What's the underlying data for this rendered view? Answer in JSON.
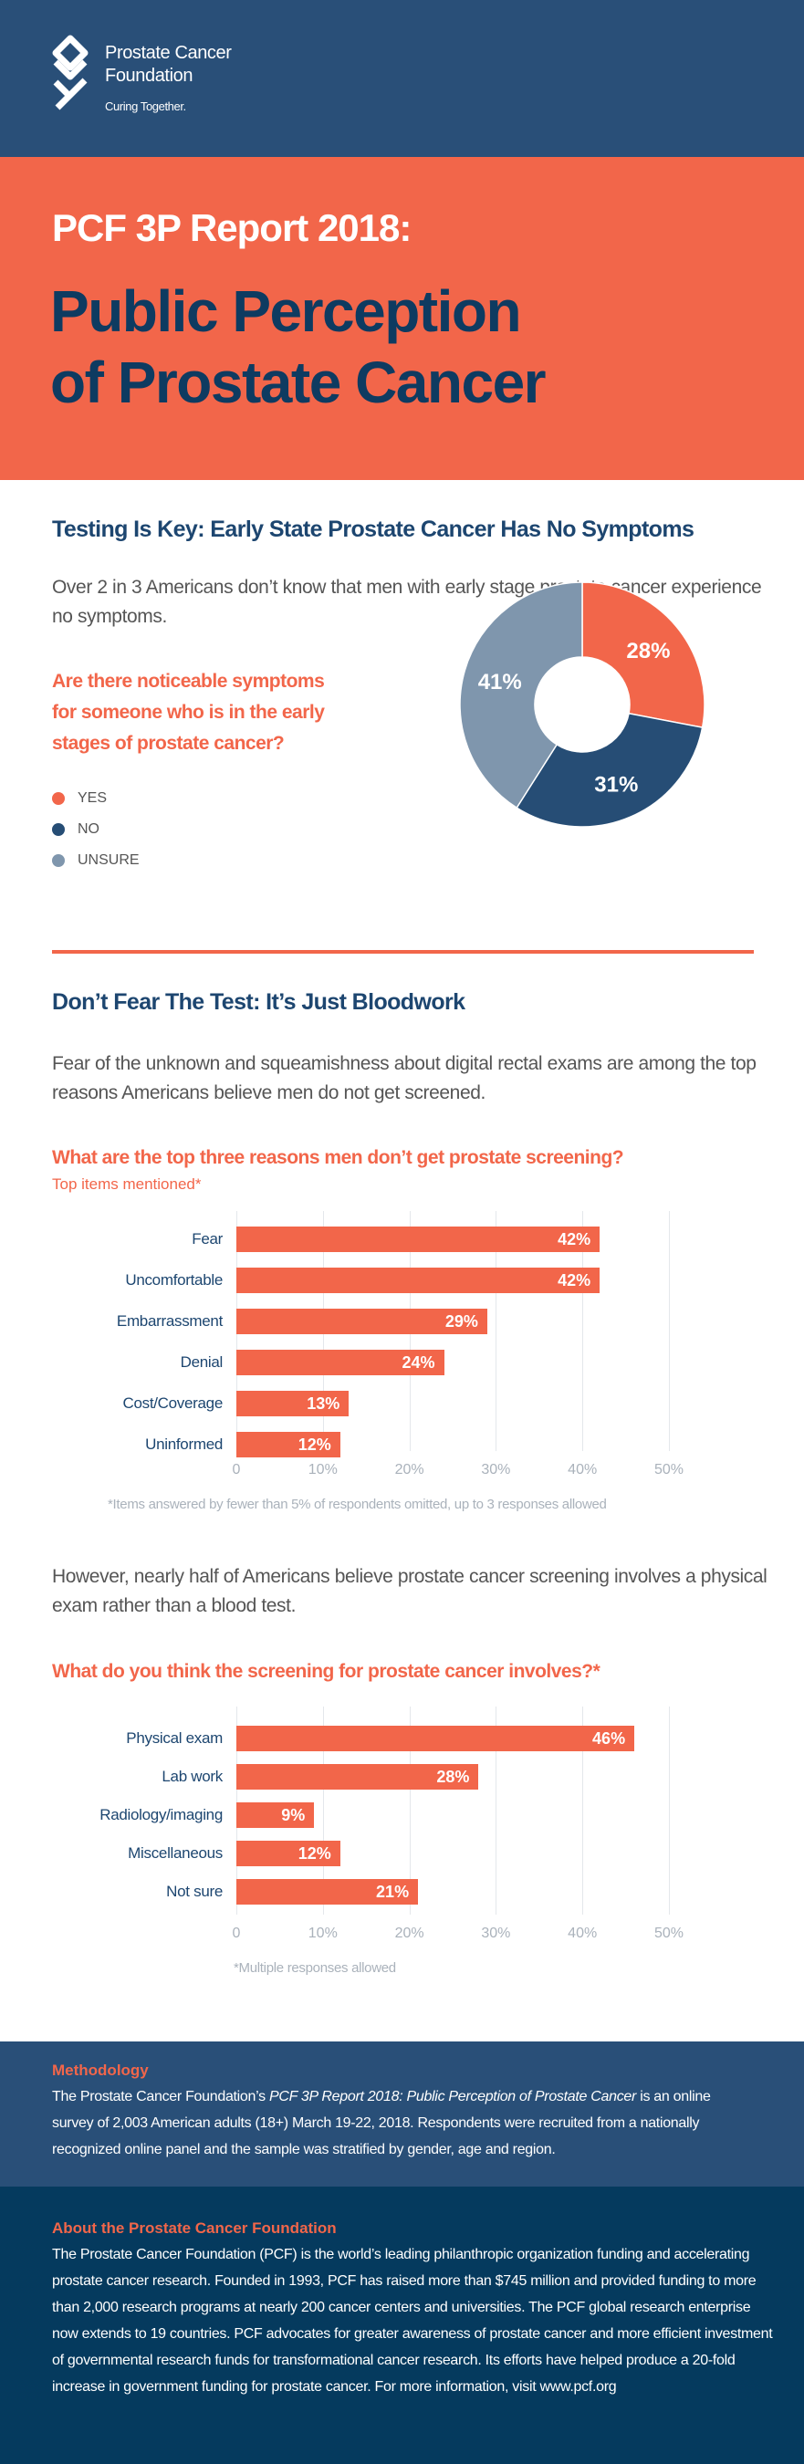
{
  "header": {
    "org_line1": "Prostate Cancer",
    "org_line2": "Foundation",
    "tagline": "Curing Together.",
    "logo_icon": "pcf-logo-icon"
  },
  "hero": {
    "kicker": "PCF 3P Report 2018:",
    "title_line1": "Public Perception",
    "title_line2": "of Prostate Cancer"
  },
  "section1": {
    "title": "Testing Is Key: Early State Prostate Cancer Has No Symptoms",
    "paragraph": "Over 2 in 3 Americans don’t know that men with early stage prostate cancer experience no symptoms.",
    "question": "Are there noticeable symptoms for someone who is in the early stages of prostate cancer?"
  },
  "section2": {
    "title": "Don’t Fear The Test: It’s Just Bloodwork",
    "paragraph": "Fear of the unknown and squeamishness about digital rectal exams are among the top reasons Americans believe men do not get screened.",
    "paragraph2": "However, nearly half of Americans believe prostate cancer screening involves a physical exam rather than a blood test."
  },
  "colors": {
    "navy": "#294f78",
    "orange": "#f2664a",
    "dark_navy": "#053a5e",
    "slice_no": "#264d75",
    "slice_unsure": "#7f96ad"
  },
  "chart_data": [
    {
      "type": "pie",
      "donut": true,
      "categories": [
        "YES",
        "NO",
        "UNSURE"
      ],
      "values": [
        28,
        31,
        41
      ],
      "labels": [
        "28%",
        "31%",
        "41%"
      ],
      "colors": [
        "#f2664a",
        "#264d75",
        "#7f96ad"
      ],
      "legend": "left"
    },
    {
      "type": "bar",
      "orientation": "horizontal",
      "title": "What are the top three reasons men don’t get prostate screening?",
      "subtitle": "Top items mentioned*",
      "categories": [
        "Fear",
        "Uncomfortable",
        "Embarrassment",
        "Denial",
        "Cost/Coverage",
        "Uninformed"
      ],
      "values": [
        42,
        42,
        29,
        24,
        13,
        12
      ],
      "labels": [
        "42%",
        "42%",
        "29%",
        "24%",
        "13%",
        "12%"
      ],
      "xlim": [
        0,
        50
      ],
      "ticks": [
        "0",
        "10%",
        "20%",
        "30%",
        "40%",
        "50%"
      ],
      "grid": true,
      "footnote": "*Items answered by fewer than 5% of respondents omitted, up to 3 responses allowed"
    },
    {
      "type": "bar",
      "orientation": "horizontal",
      "title": "What do you think the screening for prostate cancer involves?*",
      "categories": [
        "Physical exam",
        "Lab work",
        "Radiology/imaging",
        "Miscellaneous",
        "Not sure"
      ],
      "values": [
        46,
        28,
        9,
        12,
        21
      ],
      "labels": [
        "46%",
        "28%",
        "9%",
        "12%",
        "21%"
      ],
      "xlim": [
        0,
        50
      ],
      "ticks": [
        "0",
        "10%",
        "20%",
        "30%",
        "40%",
        "50%"
      ],
      "grid": true,
      "footnote": "*Multiple responses allowed"
    }
  ],
  "methodology": {
    "title": "Methodology",
    "text_pre": "The Prostate Cancer Foundation’s ",
    "text_italic": "PCF 3P Report 2018: Public Perception of Prostate Cancer",
    "text_post": " is an online survey of 2,003 American adults (18+) March 19-22, 2018. Respondents were recruited from a nationally recognized online panel and the sample was stratified by gender, age and region."
  },
  "about": {
    "title": "About the Prostate Cancer Foundation",
    "text": "The Prostate Cancer Foundation (PCF) is the world’s leading philanthropic organization funding and accelerating prostate cancer research. Founded in 1993, PCF has raised more than $745 million and provided funding to more than 2,000 research programs at nearly 200 cancer centers and universities. The PCF global research enterprise now extends to 19 countries. PCF advocates for greater awareness of prostate cancer and more efficient investment of governmental research funds for transformational cancer research. Its efforts have helped produce a 20-fold increase in government funding for prostate cancer. For more information, visit www.pcf.org"
  }
}
